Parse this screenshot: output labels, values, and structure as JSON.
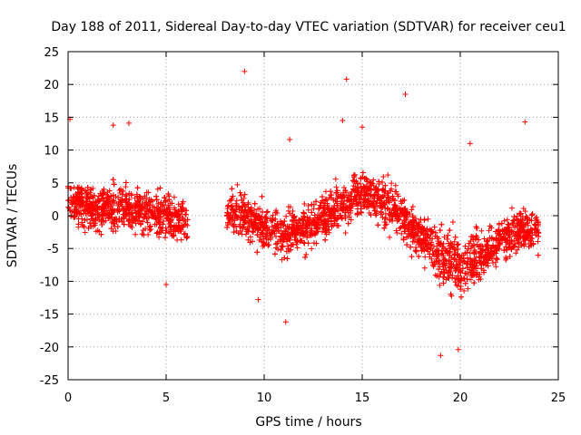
{
  "chart_data": {
    "type": "scatter",
    "title": "Day 188 of 2011, Sidereal Day-to-day VTEC variation (SDTVAR) for receiver ceu1",
    "xlabel": "GPS time / hours",
    "ylabel": "SDTVAR / TECUs",
    "xlim": [
      0,
      25
    ],
    "ylim": [
      -25,
      25
    ],
    "x_ticks": [
      "0",
      "5",
      "10",
      "15",
      "20",
      "25"
    ],
    "x_tick_values": [
      0,
      5,
      10,
      15,
      20,
      25
    ],
    "y_ticks": [
      "25",
      "20",
      "15",
      "10",
      "5",
      "0",
      "-5",
      "-10",
      "-15",
      "-20",
      "-25"
    ],
    "y_tick_values": [
      25,
      20,
      15,
      10,
      5,
      0,
      -5,
      -10,
      -15,
      -20,
      -25
    ],
    "grid": true,
    "marker": "+",
    "color": "#ff0000",
    "series": [
      {
        "name": "SDTVAR",
        "trend": [
          [
            0.0,
            1.5
          ],
          [
            0.5,
            2.0
          ],
          [
            1.0,
            1.5
          ],
          [
            2.0,
            1.0
          ],
          [
            3.0,
            1.0
          ],
          [
            4.0,
            0.5
          ],
          [
            5.0,
            0.0
          ],
          [
            6.0,
            -1.0
          ],
          [
            8.2,
            0.0
          ],
          [
            9.0,
            0.0
          ],
          [
            10.0,
            -2.0
          ],
          [
            11.0,
            -3.0
          ],
          [
            12.0,
            -2.0
          ],
          [
            13.0,
            0.0
          ],
          [
            14.0,
            2.0
          ],
          [
            15.0,
            3.5
          ],
          [
            16.0,
            2.5
          ],
          [
            17.0,
            0.0
          ],
          [
            18.0,
            -3.0
          ],
          [
            19.0,
            -6.0
          ],
          [
            20.0,
            -8.0
          ],
          [
            21.0,
            -6.0
          ],
          [
            22.0,
            -4.0
          ],
          [
            23.0,
            -2.0
          ],
          [
            24.0,
            -2.5
          ]
        ],
        "gaps": [
          [
            6.1,
            8.1
          ]
        ],
        "outliers": [
          [
            9.0,
            22.0
          ],
          [
            14.2,
            20.8
          ],
          [
            17.2,
            18.5
          ],
          [
            0.1,
            14.7
          ],
          [
            2.3,
            13.8
          ],
          [
            3.1,
            14.1
          ],
          [
            23.3,
            14.3
          ],
          [
            15.0,
            13.5
          ],
          [
            20.5,
            11.0
          ],
          [
            11.3,
            11.6
          ],
          [
            11.1,
            -16.2
          ],
          [
            19.0,
            -21.3
          ],
          [
            19.9,
            -20.4
          ],
          [
            5.0,
            -10.5
          ],
          [
            9.7,
            -12.8
          ],
          [
            14.0,
            14.5
          ]
        ]
      }
    ]
  }
}
